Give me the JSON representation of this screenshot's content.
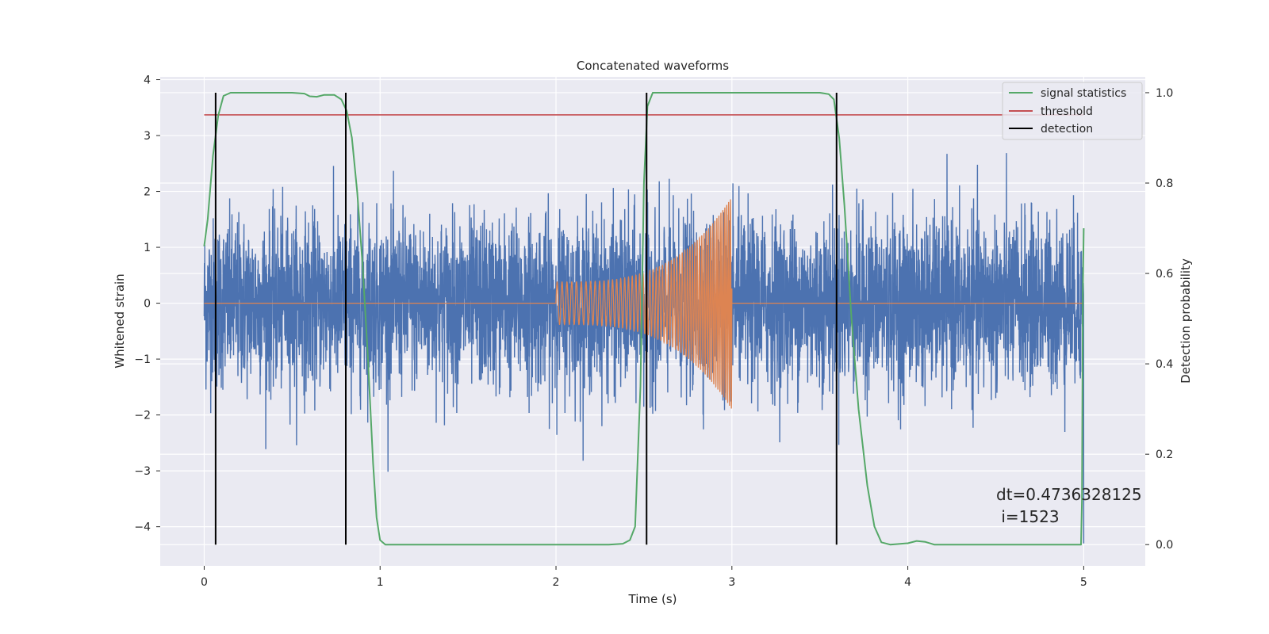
{
  "chart_data": {
    "type": "line",
    "title": "Concatenated waveforms",
    "xlabel": "Time (s)",
    "ylabel_left": "Whitened strain",
    "ylabel_right": "Detection probability",
    "xlim": [
      -0.25,
      5.35
    ],
    "ylim_left": [
      -4.7,
      4.05
    ],
    "ylim_right": [
      -0.047,
      1.035
    ],
    "xticks": [
      0,
      1,
      2,
      3,
      4,
      5
    ],
    "xtick_labels": [
      "0",
      "1",
      "2",
      "3",
      "4",
      "5"
    ],
    "yticks_left": [
      4,
      3,
      2,
      1,
      0,
      -1,
      -2,
      -3,
      -4
    ],
    "ytick_labels_left": [
      "4",
      "3",
      "2",
      "1",
      "0",
      "−1",
      "−2",
      "−3",
      "−4"
    ],
    "yticks_right": [
      1.0,
      0.8,
      0.6,
      0.4,
      0.2,
      0.0
    ],
    "ytick_labels_right": [
      "1.0",
      "0.8",
      "0.6",
      "0.4",
      "0.2",
      "0.0"
    ],
    "grid": true,
    "legend_position": "top-right",
    "legend": [
      {
        "label": "signal statistics",
        "color": "#55a868"
      },
      {
        "label": "threshold",
        "color": "#c44e52"
      },
      {
        "label": "detection",
        "color": "#000000"
      }
    ],
    "series": [
      {
        "name": "whitened strain",
        "axis": "left",
        "color": "#4c72b0",
        "kind": "noise",
        "x_range": [
          0,
          5
        ],
        "approx_std": 0.75,
        "approx_peak_range": [
          -4.3,
          3.65
        ]
      },
      {
        "name": "injected waveform",
        "axis": "left",
        "color": "#dd8452",
        "kind": "chirp",
        "x_range": [
          0,
          5
        ],
        "chirp_start": 2.0,
        "chirp_end": 3.0,
        "start_amplitude": 0.38,
        "end_amplitude": 1.9
      },
      {
        "name": "signal statistics",
        "axis": "right",
        "color": "#55a868",
        "points": [
          [
            0.0,
            0.66
          ],
          [
            0.02,
            0.72
          ],
          [
            0.05,
            0.86
          ],
          [
            0.08,
            0.95
          ],
          [
            0.11,
            0.993
          ],
          [
            0.15,
            1.0
          ],
          [
            0.4,
            1.0
          ],
          [
            0.5,
            1.0
          ],
          [
            0.57,
            0.998
          ],
          [
            0.6,
            0.992
          ],
          [
            0.64,
            0.991
          ],
          [
            0.68,
            0.995
          ],
          [
            0.74,
            0.995
          ],
          [
            0.78,
            0.985
          ],
          [
            0.81,
            0.96
          ],
          [
            0.84,
            0.9
          ],
          [
            0.87,
            0.78
          ],
          [
            0.9,
            0.62
          ],
          [
            0.93,
            0.42
          ],
          [
            0.96,
            0.18
          ],
          [
            0.98,
            0.06
          ],
          [
            1.0,
            0.01
          ],
          [
            1.03,
            0.0
          ],
          [
            2.3,
            0.0
          ],
          [
            2.38,
            0.002
          ],
          [
            2.42,
            0.01
          ],
          [
            2.45,
            0.04
          ],
          [
            2.48,
            0.35
          ],
          [
            2.5,
            0.8
          ],
          [
            2.52,
            0.97
          ],
          [
            2.55,
            1.0
          ],
          [
            3.5,
            1.0
          ],
          [
            3.55,
            0.997
          ],
          [
            3.58,
            0.985
          ],
          [
            3.61,
            0.9
          ],
          [
            3.64,
            0.75
          ],
          [
            3.68,
            0.5
          ],
          [
            3.72,
            0.3
          ],
          [
            3.77,
            0.13
          ],
          [
            3.81,
            0.04
          ],
          [
            3.85,
            0.005
          ],
          [
            3.9,
            0.0
          ],
          [
            4.0,
            0.003
          ],
          [
            4.05,
            0.008
          ],
          [
            4.1,
            0.006
          ],
          [
            4.15,
            0.0
          ],
          [
            4.98,
            0.0
          ],
          [
            4.985,
            0.0
          ],
          [
            4.99,
            0.1
          ],
          [
            4.995,
            0.56
          ],
          [
            5.0,
            0.7
          ]
        ]
      },
      {
        "name": "threshold",
        "axis": "right",
        "color": "#c44e52",
        "points": [
          [
            0,
            0.951
          ],
          [
            5,
            0.951
          ]
        ]
      }
    ],
    "detections": [
      0.065,
      0.805,
      2.515,
      3.595
    ],
    "annotation": [
      "dt=0.4736328125",
      " i=1523"
    ],
    "annotation_position": {
      "x": 4.5,
      "y_right": 0.11
    }
  }
}
